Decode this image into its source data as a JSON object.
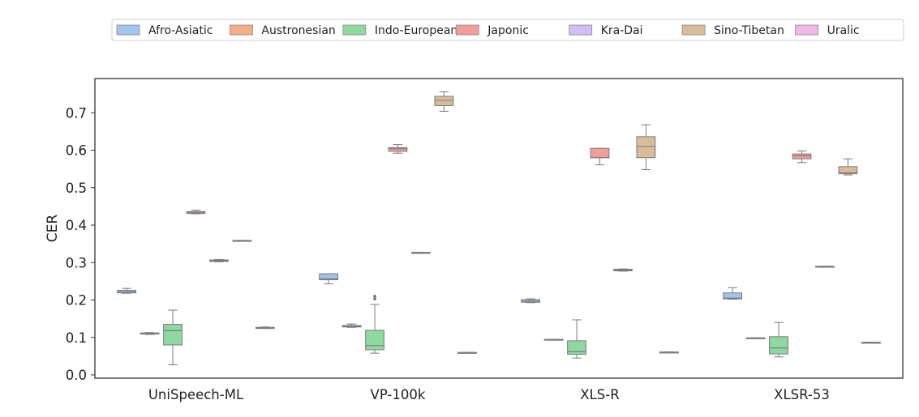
{
  "chart_data": {
    "type": "boxplot",
    "title": "",
    "xlabel": "",
    "ylabel": "CER",
    "ylim": [
      0.0,
      0.8
    ],
    "yticks": [
      "0.0",
      "0.1",
      "0.2",
      "0.3",
      "0.4",
      "0.5",
      "0.6",
      "0.7"
    ],
    "grid": false,
    "legend_position": "top",
    "categories": [
      "UniSpeech-ML",
      "VP-100k",
      "XLS-R",
      "XLSR-53"
    ],
    "series": [
      {
        "name": "Afro-Asiatic",
        "color": "#a1c4ec",
        "boxes": [
          {
            "min": 0.218,
            "q1": 0.219,
            "median": 0.222,
            "q3": 0.226,
            "max": 0.231,
            "outliers": []
          },
          {
            "min": 0.243,
            "q1": 0.254,
            "median": 0.257,
            "q3": 0.27,
            "max": 0.27,
            "outliers": []
          },
          {
            "min": 0.193,
            "q1": 0.194,
            "median": 0.197,
            "q3": 0.201,
            "max": 0.203,
            "outliers": []
          },
          {
            "min": 0.202,
            "q1": 0.203,
            "median": 0.205,
            "q3": 0.219,
            "max": 0.233,
            "outliers": []
          }
        ]
      },
      {
        "name": "Austronesian",
        "color": "#f4b084",
        "boxes": [
          {
            "min": 0.108,
            "q1": 0.109,
            "median": 0.111,
            "q3": 0.112,
            "max": 0.113,
            "outliers": []
          },
          {
            "min": 0.127,
            "q1": 0.128,
            "median": 0.13,
            "q3": 0.132,
            "max": 0.136,
            "outliers": []
          },
          {
            "min": 0.095,
            "q1": 0.095,
            "median": 0.095,
            "q3": 0.095,
            "max": 0.095,
            "outliers": []
          },
          {
            "min": 0.098,
            "q1": 0.098,
            "median": 0.098,
            "q3": 0.099,
            "max": 0.099,
            "outliers": []
          }
        ]
      },
      {
        "name": "Indo-European",
        "color": "#8dd9a0",
        "boxes": [
          {
            "min": 0.027,
            "q1": 0.08,
            "median": 0.118,
            "q3": 0.135,
            "max": 0.173,
            "outliers": []
          },
          {
            "min": 0.058,
            "q1": 0.067,
            "median": 0.078,
            "q3": 0.119,
            "max": 0.188,
            "outliers": [
              0.203,
              0.21
            ]
          },
          {
            "min": 0.045,
            "q1": 0.055,
            "median": 0.062,
            "q3": 0.091,
            "max": 0.147,
            "outliers": []
          },
          {
            "min": 0.048,
            "q1": 0.056,
            "median": 0.072,
            "q3": 0.102,
            "max": 0.14,
            "outliers": []
          }
        ]
      },
      {
        "name": "Japonic",
        "color": "#f29e98",
        "boxes": [
          {
            "min": 0.43,
            "q1": 0.431,
            "median": 0.434,
            "q3": 0.436,
            "max": 0.44,
            "outliers": []
          },
          {
            "min": 0.592,
            "q1": 0.597,
            "median": 0.604,
            "q3": 0.607,
            "max": 0.615,
            "outliers": []
          },
          {
            "min": 0.561,
            "q1": 0.58,
            "median": 0.58,
            "q3": 0.605,
            "max": 0.605,
            "outliers": []
          },
          {
            "min": 0.567,
            "q1": 0.577,
            "median": 0.585,
            "q3": 0.59,
            "max": 0.598,
            "outliers": []
          }
        ]
      },
      {
        "name": "Kra-Dai",
        "color": "#d0bef4",
        "boxes": [
          {
            "min": 0.302,
            "q1": 0.303,
            "median": 0.305,
            "q3": 0.307,
            "max": 0.308,
            "outliers": []
          },
          {
            "min": 0.327,
            "q1": 0.327,
            "median": 0.327,
            "q3": 0.327,
            "max": 0.327,
            "outliers": []
          },
          {
            "min": 0.277,
            "q1": 0.278,
            "median": 0.28,
            "q3": 0.282,
            "max": 0.283,
            "outliers": []
          },
          {
            "min": 0.29,
            "q1": 0.29,
            "median": 0.29,
            "q3": 0.29,
            "max": 0.29,
            "outliers": []
          }
        ]
      },
      {
        "name": "Sino-Tibetan",
        "color": "#d9bd9b",
        "boxes": [
          {
            "min": 0.359,
            "q1": 0.359,
            "median": 0.359,
            "q3": 0.359,
            "max": 0.359,
            "outliers": []
          },
          {
            "min": 0.704,
            "q1": 0.719,
            "median": 0.733,
            "q3": 0.744,
            "max": 0.756,
            "outliers": []
          },
          {
            "min": 0.548,
            "q1": 0.58,
            "median": 0.61,
            "q3": 0.636,
            "max": 0.668,
            "outliers": []
          },
          {
            "min": 0.534,
            "q1": 0.537,
            "median": 0.54,
            "q3": 0.556,
            "max": 0.577,
            "outliers": []
          }
        ]
      },
      {
        "name": "Uralic",
        "color": "#f0b8e6",
        "boxes": [
          {
            "min": 0.124,
            "q1": 0.124,
            "median": 0.125,
            "q3": 0.127,
            "max": 0.128,
            "outliers": []
          },
          {
            "min": 0.06,
            "q1": 0.06,
            "median": 0.06,
            "q3": 0.06,
            "max": 0.06,
            "outliers": []
          },
          {
            "min": 0.061,
            "q1": 0.061,
            "median": 0.061,
            "q3": 0.061,
            "max": 0.061,
            "outliers": []
          },
          {
            "min": 0.087,
            "q1": 0.087,
            "median": 0.087,
            "q3": 0.087,
            "max": 0.087,
            "outliers": []
          }
        ]
      }
    ]
  }
}
